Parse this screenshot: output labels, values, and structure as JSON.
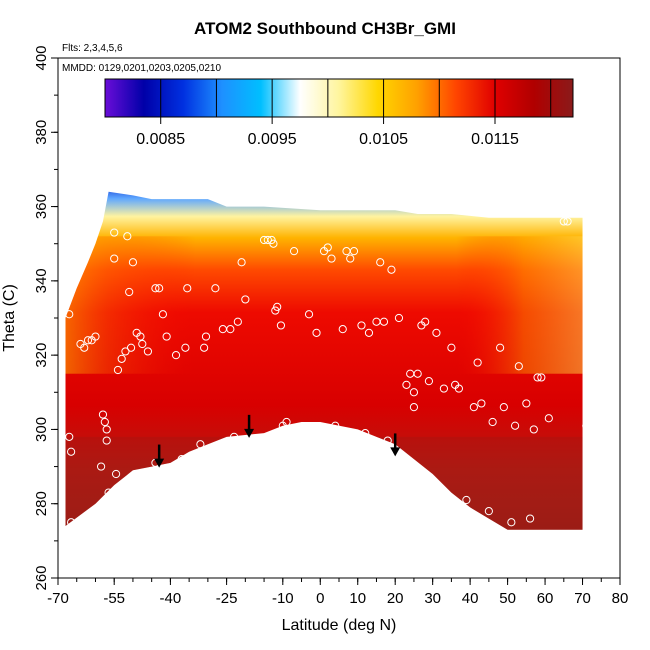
{
  "chart_data": {
    "type": "heatmap",
    "title": "ATOM2 Southbound CH3Br_GMI",
    "flights_note": "Flts: 2,3,4,5,6",
    "dates_note": "MMDD: 0129,0201,0203,0205,0210",
    "xlabel": "Latitude (deg N)",
    "ylabel": "Theta (C)",
    "xlim": [
      -70,
      80
    ],
    "ylim": [
      260,
      400
    ],
    "x_ticks": [
      "-70",
      "-55",
      "-40",
      "-25",
      "-10",
      "0",
      "10",
      "20",
      "30",
      "40",
      "50",
      "60",
      "70",
      "80"
    ],
    "y_ticks": [
      "260",
      "280",
      "300",
      "320",
      "340",
      "360",
      "380",
      "400"
    ],
    "colorbar": {
      "min": 0.008,
      "max": 0.0122,
      "labels": [
        "0.0085",
        "0.0095",
        "0.0105",
        "0.0115"
      ],
      "colors": [
        "#6a0dd8",
        "#0000a8",
        "#0030e0",
        "#1e90ff",
        "#00bfff",
        "#ffffff",
        "#fff59d",
        "#ffd700",
        "#ffa000",
        "#ff4500",
        "#e00000",
        "#b00000",
        "#8b1a1a"
      ]
    },
    "upper_boundary": [
      [
        -68,
        330
      ],
      [
        -65,
        338
      ],
      [
        -62,
        345
      ],
      [
        -60,
        350
      ],
      [
        -58,
        356
      ],
      [
        -56.5,
        364
      ],
      [
        -50,
        363
      ],
      [
        -45,
        362
      ],
      [
        -40,
        362
      ],
      [
        -30,
        362
      ],
      [
        -25,
        360
      ],
      [
        -15,
        360
      ],
      [
        0,
        359
      ],
      [
        20,
        359
      ],
      [
        26,
        358
      ],
      [
        35,
        358
      ],
      [
        45,
        357
      ],
      [
        55,
        357
      ],
      [
        63,
        357
      ],
      [
        70,
        357
      ]
    ],
    "lower_boundary": [
      [
        -68,
        274
      ],
      [
        -60,
        280
      ],
      [
        -55,
        285
      ],
      [
        -50,
        289
      ],
      [
        -45,
        290
      ],
      [
        -40,
        291
      ],
      [
        -35,
        294
      ],
      [
        -30,
        296
      ],
      [
        -25,
        298
      ],
      [
        -15,
        299
      ],
      [
        -10,
        301
      ],
      [
        -5,
        302
      ],
      [
        0,
        302
      ],
      [
        10,
        300
      ],
      [
        15,
        298
      ],
      [
        20,
        296
      ],
      [
        25,
        292
      ],
      [
        30,
        288
      ],
      [
        35,
        283
      ],
      [
        40,
        279
      ],
      [
        45,
        276
      ],
      [
        50,
        273
      ],
      [
        55,
        273
      ],
      [
        60,
        273
      ],
      [
        65,
        273
      ],
      [
        70,
        273
      ]
    ],
    "arrows": [
      [
        -43,
        290
      ],
      [
        -19,
        298
      ],
      [
        20,
        293
      ]
    ],
    "points": [
      [
        -67.5,
        336
      ],
      [
        -67,
        331
      ],
      [
        -67,
        298
      ],
      [
        -66.5,
        294
      ],
      [
        -66.5,
        275
      ],
      [
        -64,
        323
      ],
      [
        -63,
        322
      ],
      [
        -62,
        324
      ],
      [
        -61,
        324
      ],
      [
        -60,
        325
      ],
      [
        -58.5,
        290
      ],
      [
        -58,
        304
      ],
      [
        -57.5,
        302
      ],
      [
        -57,
        297
      ],
      [
        -57,
        300
      ],
      [
        -56.5,
        283
      ],
      [
        -56,
        280
      ],
      [
        -55,
        346
      ],
      [
        -55,
        353
      ],
      [
        -54.5,
        288
      ],
      [
        -54,
        316
      ],
      [
        -53,
        319
      ],
      [
        -52,
        321
      ],
      [
        -51.5,
        352
      ],
      [
        -51,
        337
      ],
      [
        -50.5,
        322
      ],
      [
        -50,
        345
      ],
      [
        -49,
        326
      ],
      [
        -48,
        325
      ],
      [
        -47.5,
        323
      ],
      [
        -46,
        321
      ],
      [
        -44,
        338
      ],
      [
        -44,
        291
      ],
      [
        -43,
        338
      ],
      [
        -42,
        331
      ],
      [
        -41,
        325
      ],
      [
        -38.5,
        320
      ],
      [
        -37,
        292
      ],
      [
        -36,
        322
      ],
      [
        -35.5,
        338
      ],
      [
        -32,
        296
      ],
      [
        -31,
        322
      ],
      [
        -30.5,
        325
      ],
      [
        -28,
        338
      ],
      [
        -26,
        327
      ],
      [
        -24,
        327
      ],
      [
        -23,
        298
      ],
      [
        -22,
        329
      ],
      [
        -21,
        345
      ],
      [
        -20,
        335
      ],
      [
        -15,
        351
      ],
      [
        -14,
        351
      ],
      [
        -13,
        351
      ],
      [
        -12.5,
        350
      ],
      [
        -12,
        332
      ],
      [
        -11.5,
        333
      ],
      [
        -10.5,
        328
      ],
      [
        -10,
        301
      ],
      [
        -9,
        302
      ],
      [
        -7,
        348
      ],
      [
        -3,
        331
      ],
      [
        -1,
        326
      ],
      [
        1,
        348
      ],
      [
        2,
        349
      ],
      [
        3,
        346
      ],
      [
        4,
        301
      ],
      [
        6,
        327
      ],
      [
        7,
        348
      ],
      [
        8,
        346
      ],
      [
        9,
        348
      ],
      [
        11,
        328
      ],
      [
        12,
        299
      ],
      [
        13,
        326
      ],
      [
        15,
        329
      ],
      [
        16,
        345
      ],
      [
        17,
        329
      ],
      [
        18,
        297
      ],
      [
        19,
        343
      ],
      [
        21,
        330
      ],
      [
        23,
        312
      ],
      [
        24,
        315
      ],
      [
        25,
        310
      ],
      [
        25,
        306
      ],
      [
        26,
        315
      ],
      [
        27,
        328
      ],
      [
        28,
        329
      ],
      [
        29,
        313
      ],
      [
        31,
        326
      ],
      [
        33,
        311
      ],
      [
        35,
        322
      ],
      [
        36,
        312
      ],
      [
        37,
        311
      ],
      [
        39,
        281
      ],
      [
        41,
        306
      ],
      [
        42,
        318
      ],
      [
        43,
        307
      ],
      [
        45,
        278
      ],
      [
        46,
        302
      ],
      [
        48,
        322
      ],
      [
        49,
        306
      ],
      [
        51,
        275
      ],
      [
        52,
        301
      ],
      [
        53,
        317
      ],
      [
        55,
        307
      ],
      [
        56,
        276
      ],
      [
        57,
        300
      ],
      [
        58,
        314
      ],
      [
        59,
        314
      ],
      [
        61,
        303
      ],
      [
        65,
        356
      ],
      [
        66,
        356
      ],
      [
        71,
        301
      ]
    ]
  }
}
